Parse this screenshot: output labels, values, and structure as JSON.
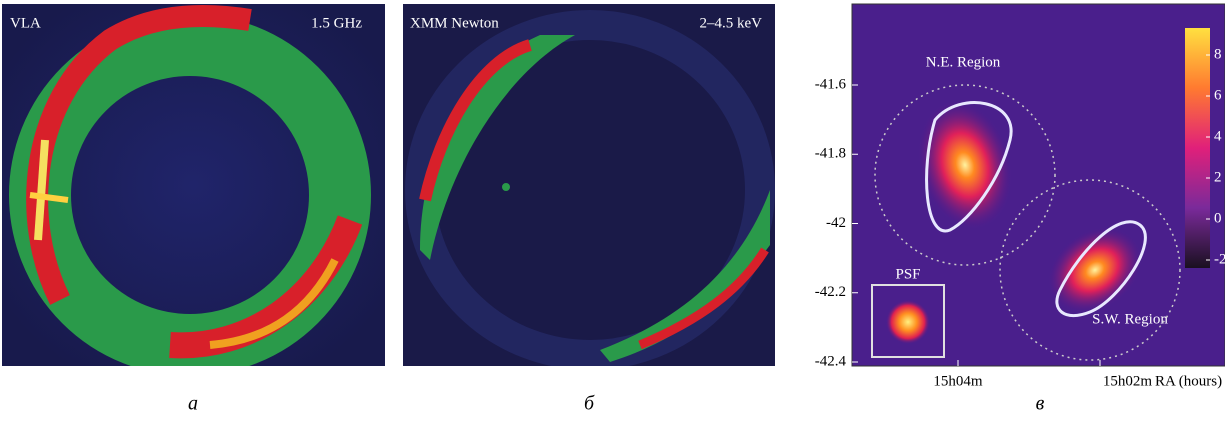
{
  "panels": [
    {
      "label": "а",
      "instrument": "VLA",
      "band": "1.5 GHz"
    },
    {
      "label": "б",
      "instrument": "XMM Newton",
      "band": "2–4.5 keV"
    },
    {
      "label": "в",
      "yticks": [
        -41.6,
        -41.8,
        -42,
        -42.2,
        -42.4
      ],
      "xticks": [
        "15h04m",
        "15h02m"
      ],
      "xlabel": "RA (hours)",
      "regions": [
        "N.E. Region",
        "S.W. Region"
      ],
      "psf_label": "PSF",
      "colorbar_ticks": [
        8,
        6,
        4,
        2,
        0,
        -2
      ]
    }
  ]
}
